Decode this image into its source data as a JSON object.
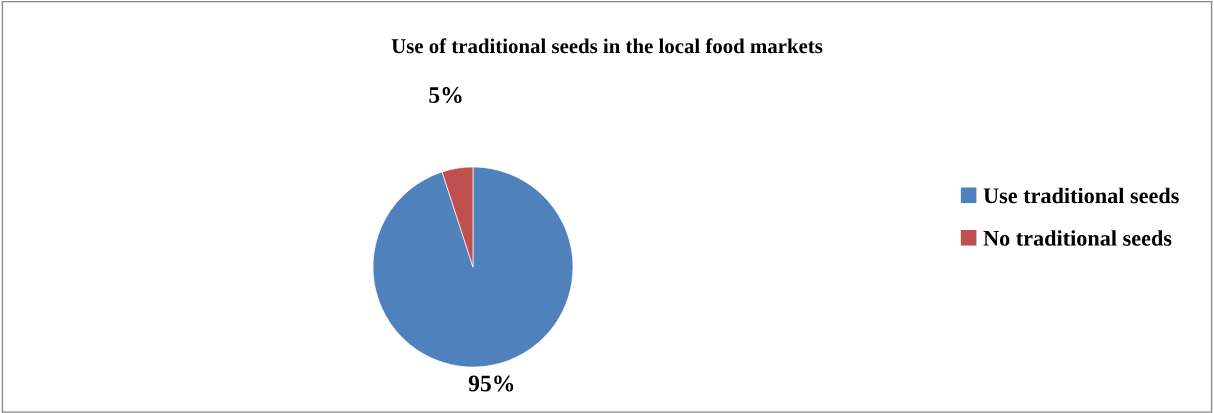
{
  "chart_data": {
    "type": "pie",
    "title": "Use of traditional seeds in the local food markets",
    "categories": [
      "Use traditional seeds",
      "No traditional seeds"
    ],
    "values": [
      95,
      5
    ],
    "colors": [
      "#4f81bd",
      "#c0504d"
    ],
    "value_labels": [
      "95%",
      "5%"
    ],
    "legend": "right"
  }
}
